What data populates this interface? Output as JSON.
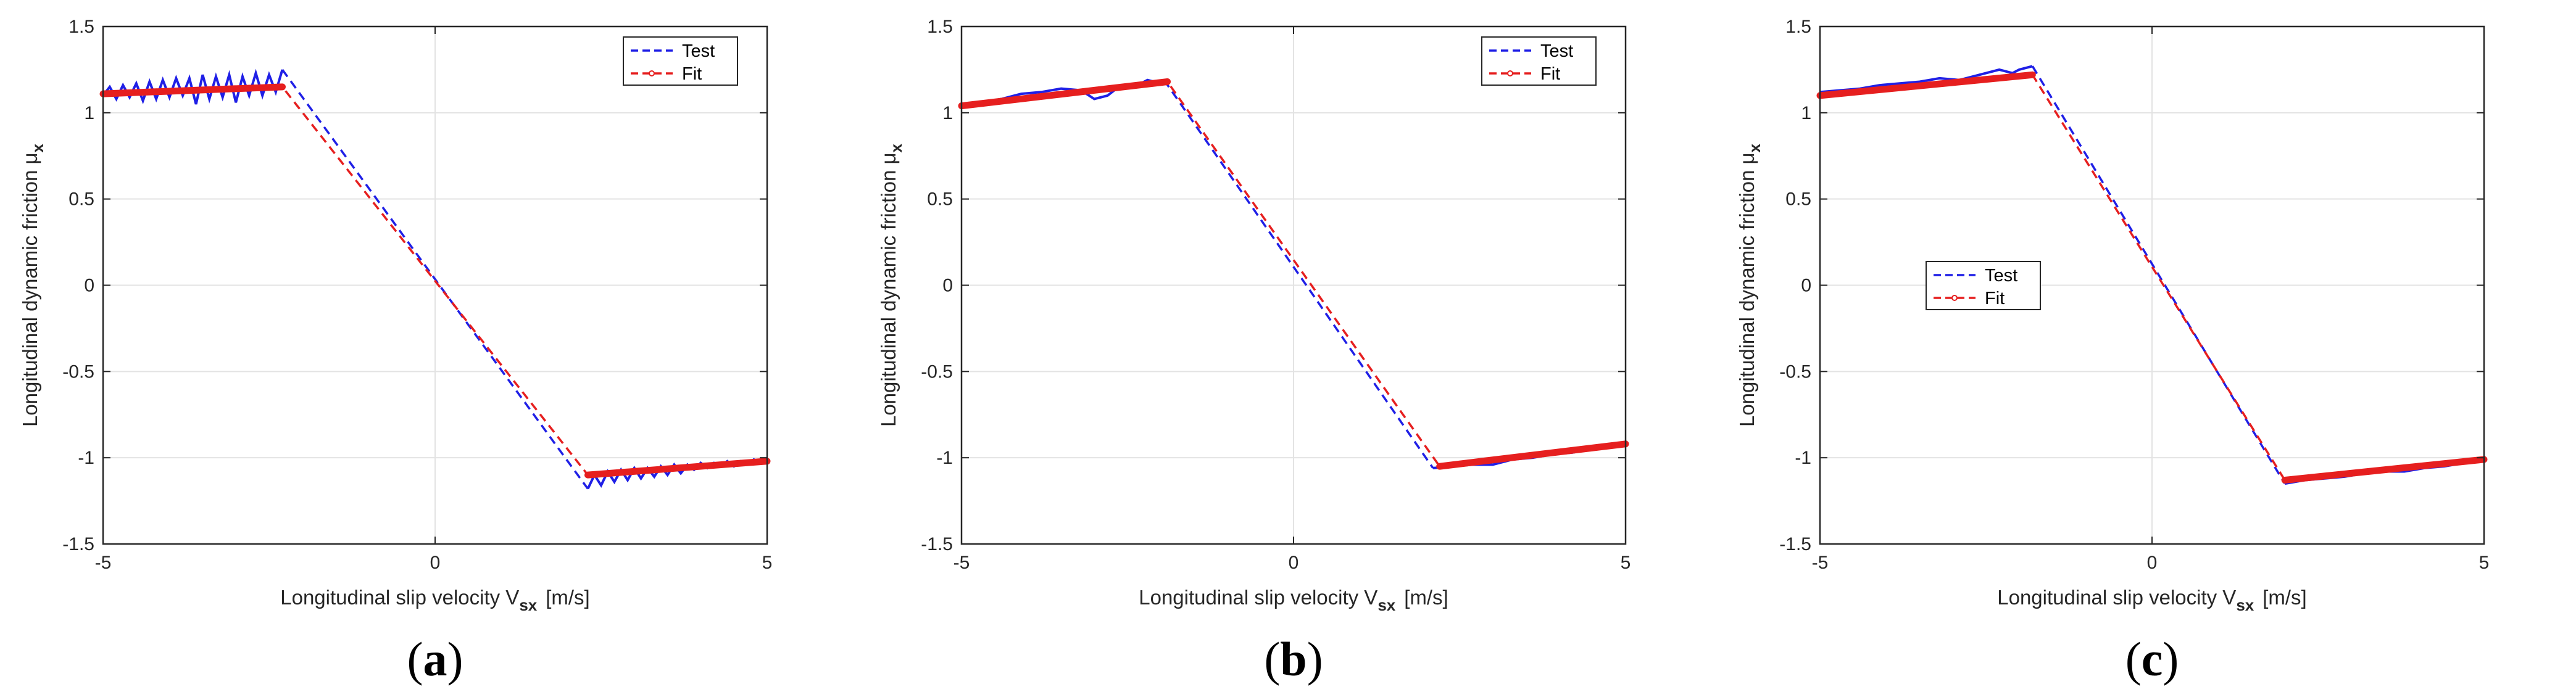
{
  "chart_data": [
    {
      "type": "line",
      "panel": "a",
      "caption": "(a)",
      "xlabel": "Longitudinal slip velocity V",
      "xlabel_sub": "sx",
      "xlabel_unit": "[m/s]",
      "ylabel": "Longitudinal dynamic friction μ",
      "ylabel_sub": "x",
      "xlim": [
        -5,
        5
      ],
      "ylim": [
        -1.5,
        1.5
      ],
      "xticks": [
        "-5",
        "0",
        "5"
      ],
      "yticks": [
        "-1.5",
        "-1",
        "-0.5",
        "0",
        "0.5",
        "1",
        "1.5"
      ],
      "grid": true,
      "legend_position": "top-right",
      "series": [
        {
          "name": "Test",
          "color": "#1f1fe6",
          "x": [
            -5.0,
            -4.9,
            -4.8,
            -4.7,
            -4.6,
            -4.5,
            -4.4,
            -4.3,
            -4.2,
            -4.1,
            -4.0,
            -3.9,
            -3.8,
            -3.7,
            -3.6,
            -3.5,
            -3.4,
            -3.3,
            -3.2,
            -3.1,
            -3.0,
            -2.9,
            -2.8,
            -2.7,
            -2.6,
            -2.5,
            -2.4,
            -2.3,
            2.3,
            2.4,
            2.5,
            2.6,
            2.7,
            2.8,
            2.9,
            3.0,
            3.1,
            3.2,
            3.3,
            3.4,
            3.5,
            3.6,
            3.7,
            3.8,
            3.9,
            4.0,
            4.1,
            4.2,
            4.3,
            4.4,
            4.5,
            4.6,
            4.7,
            4.8,
            4.9,
            5.0
          ],
          "y": [
            1.1,
            1.15,
            1.08,
            1.16,
            1.09,
            1.17,
            1.07,
            1.18,
            1.08,
            1.19,
            1.09,
            1.2,
            1.1,
            1.2,
            1.05,
            1.22,
            1.08,
            1.21,
            1.09,
            1.22,
            1.06,
            1.21,
            1.1,
            1.23,
            1.1,
            1.22,
            1.12,
            1.25,
            -1.18,
            -1.1,
            -1.16,
            -1.08,
            -1.14,
            -1.07,
            -1.13,
            -1.06,
            -1.12,
            -1.06,
            -1.11,
            -1.05,
            -1.1,
            -1.04,
            -1.09,
            -1.04,
            -1.07,
            -1.03,
            -1.06,
            -1.03,
            -1.05,
            -1.02,
            -1.05,
            -1.02,
            -1.04,
            -1.01,
            -1.03,
            -1.0
          ]
        },
        {
          "name": "Fit",
          "color": "#e61f1f",
          "x": [
            -5.0,
            -2.3,
            2.3,
            5.0
          ],
          "y": [
            1.11,
            1.15,
            -1.1,
            -1.02
          ]
        }
      ]
    },
    {
      "type": "line",
      "panel": "b",
      "caption": "(b)",
      "xlabel": "Longitudinal slip velocity V",
      "xlabel_sub": "sx",
      "xlabel_unit": "[m/s]",
      "ylabel": "Longitudinal dynamic friction μ",
      "ylabel_sub": "x",
      "xlim": [
        -5,
        5
      ],
      "ylim": [
        -1.5,
        1.5
      ],
      "xticks": [
        "-5",
        "0",
        "5"
      ],
      "yticks": [
        "-1.5",
        "-1",
        "-0.5",
        "0",
        "0.5",
        "1",
        "1.5"
      ],
      "grid": true,
      "legend_position": "top-right",
      "series": [
        {
          "name": "Test",
          "color": "#1f1fe6",
          "x": [
            -5.0,
            -4.7,
            -4.4,
            -4.1,
            -3.8,
            -3.5,
            -3.2,
            -3.0,
            -2.8,
            -2.6,
            -2.4,
            -2.2,
            -2.0,
            -1.95,
            2.1,
            2.4,
            2.7,
            3.0,
            3.3,
            3.6,
            3.9,
            4.2,
            4.5,
            4.8,
            5.0
          ],
          "y": [
            1.04,
            1.06,
            1.08,
            1.11,
            1.12,
            1.14,
            1.13,
            1.08,
            1.1,
            1.16,
            1.15,
            1.19,
            1.17,
            1.19,
            -1.06,
            -1.05,
            -1.04,
            -1.04,
            -1.01,
            -1.0,
            -0.98,
            -0.97,
            -0.95,
            -0.94,
            -0.92
          ]
        },
        {
          "name": "Fit",
          "color": "#e61f1f",
          "x": [
            -5.0,
            -1.9,
            2.2,
            5.0
          ],
          "y": [
            1.04,
            1.18,
            -1.05,
            -0.92
          ]
        }
      ]
    },
    {
      "type": "line",
      "panel": "c",
      "caption": "(c)",
      "xlabel": "Longitudinal slip velocity V",
      "xlabel_sub": "sx",
      "xlabel_unit": "[m/s]",
      "ylabel": "Longitudinal dynamic friction μ",
      "ylabel_sub": "x",
      "xlim": [
        -5,
        5
      ],
      "ylim": [
        -1.5,
        1.5
      ],
      "xticks": [
        "-5",
        "0",
        "5"
      ],
      "yticks": [
        "-1.5",
        "-1",
        "-0.5",
        "0",
        "0.5",
        "1",
        "1.5"
      ],
      "grid": true,
      "legend_position": "middle-left",
      "series": [
        {
          "name": "Test",
          "color": "#1f1fe6",
          "x": [
            -5.0,
            -4.7,
            -4.4,
            -4.1,
            -3.8,
            -3.5,
            -3.2,
            -2.9,
            -2.6,
            -2.3,
            -2.1,
            -2.0,
            -1.8,
            2.0,
            2.3,
            2.6,
            2.9,
            3.2,
            3.5,
            3.8,
            4.1,
            4.4,
            4.7,
            5.0
          ],
          "y": [
            1.12,
            1.13,
            1.14,
            1.16,
            1.17,
            1.18,
            1.2,
            1.19,
            1.22,
            1.25,
            1.23,
            1.25,
            1.27,
            -1.15,
            -1.13,
            -1.12,
            -1.11,
            -1.09,
            -1.08,
            -1.08,
            -1.06,
            -1.05,
            -1.03,
            -1.02
          ],
          "extra_points": []
        },
        {
          "name": "Fit",
          "color": "#e61f1f",
          "x": [
            -5.0,
            -1.8,
            2.0,
            5.0
          ],
          "y": [
            1.1,
            1.22,
            -1.13,
            -1.01
          ]
        }
      ]
    }
  ]
}
